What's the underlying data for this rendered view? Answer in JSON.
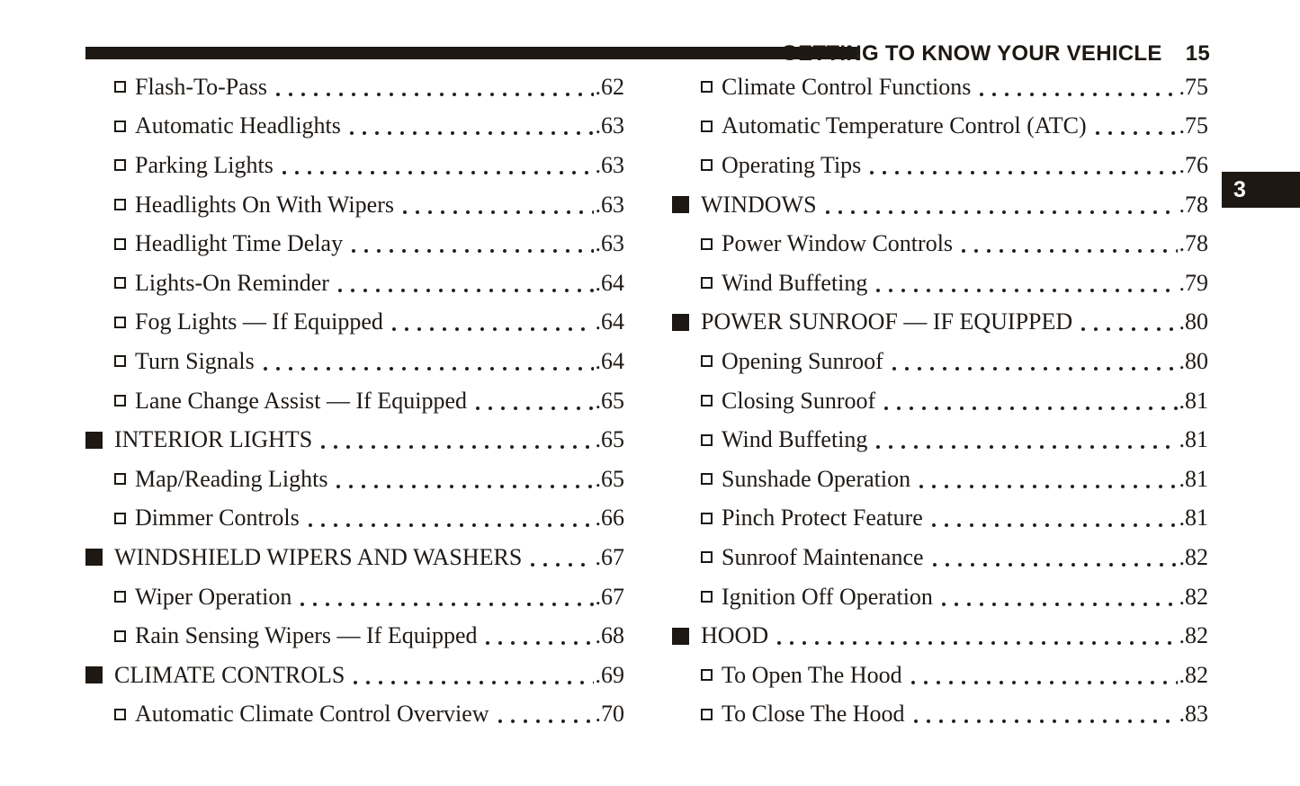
{
  "header": {
    "title": "GETTING TO KNOW YOUR VEHICLE",
    "page_number": "15"
  },
  "chapter_tab": {
    "label": "3"
  },
  "colors": {
    "ink": "#1f1a16",
    "bar": "#1d1813",
    "background": "#ffffff",
    "tab_text": "#ffffff"
  },
  "toc": {
    "columns": [
      {
        "items": [
          {
            "level": "sub",
            "label": "Flash-To-Pass",
            "page_label": ".62"
          },
          {
            "level": "sub",
            "label": "Automatic Headlights",
            "page_label": ".63"
          },
          {
            "level": "sub",
            "label": "Parking Lights",
            "page_label": ".63"
          },
          {
            "level": "sub",
            "label": "Headlights On With Wipers",
            "page_label": ".63"
          },
          {
            "level": "sub",
            "label": "Headlight Time Delay",
            "page_label": ".63"
          },
          {
            "level": "sub",
            "label": "Lights-On Reminder",
            "page_label": ".64"
          },
          {
            "level": "sub",
            "label": "Fog Lights — If Equipped",
            "page_label": ".64"
          },
          {
            "level": "sub",
            "label": "Turn Signals",
            "page_label": ".64"
          },
          {
            "level": "sub",
            "label": "Lane Change Assist — If Equipped",
            "page_label": ".65"
          },
          {
            "level": "main",
            "label": "INTERIOR LIGHTS",
            "page_label": ".65"
          },
          {
            "level": "sub",
            "label": "Map/Reading Lights",
            "page_label": ".65"
          },
          {
            "level": "sub",
            "label": "Dimmer Controls",
            "page_label": ".66"
          },
          {
            "level": "main",
            "label": "WINDSHIELD WIPERS AND WASHERS",
            "page_label": ".67"
          },
          {
            "level": "sub",
            "label": "Wiper Operation",
            "page_label": ".67"
          },
          {
            "level": "sub",
            "label": "Rain Sensing Wipers — If Equipped",
            "page_label": ".68"
          },
          {
            "level": "main",
            "label": "CLIMATE CONTROLS",
            "page_label": ".69"
          },
          {
            "level": "sub",
            "label": "Automatic Climate Control Overview",
            "page_label": ".70"
          }
        ]
      },
      {
        "items": [
          {
            "level": "sub",
            "label": "Climate Control Functions",
            "page_label": ".75"
          },
          {
            "level": "sub",
            "label": "Automatic Temperature Control (ATC)",
            "page_label": ".75"
          },
          {
            "level": "sub",
            "label": "Operating Tips",
            "page_label": ".76"
          },
          {
            "level": "main",
            "label": "WINDOWS",
            "page_label": ".78"
          },
          {
            "level": "sub",
            "label": "Power Window Controls",
            "page_label": ".78"
          },
          {
            "level": "sub",
            "label": "Wind Buffeting",
            "page_label": ".79"
          },
          {
            "level": "main",
            "label": "POWER SUNROOF — IF EQUIPPED",
            "page_label": ".80"
          },
          {
            "level": "sub",
            "label": "Opening Sunroof",
            "page_label": ".80"
          },
          {
            "level": "sub",
            "label": "Closing Sunroof",
            "page_label": ".81"
          },
          {
            "level": "sub",
            "label": "Wind Buffeting",
            "page_label": ".81"
          },
          {
            "level": "sub",
            "label": "Sunshade Operation",
            "page_label": ".81"
          },
          {
            "level": "sub",
            "label": "Pinch Protect Feature",
            "page_label": ".81"
          },
          {
            "level": "sub",
            "label": "Sunroof Maintenance",
            "page_label": ".82"
          },
          {
            "level": "sub",
            "label": "Ignition Off Operation",
            "page_label": ".82"
          },
          {
            "level": "main",
            "label": "HOOD",
            "page_label": ".82"
          },
          {
            "level": "sub",
            "label": "To Open The Hood",
            "page_label": ".82"
          },
          {
            "level": "sub",
            "label": "To Close The Hood",
            "page_label": ".83"
          }
        ]
      }
    ]
  }
}
